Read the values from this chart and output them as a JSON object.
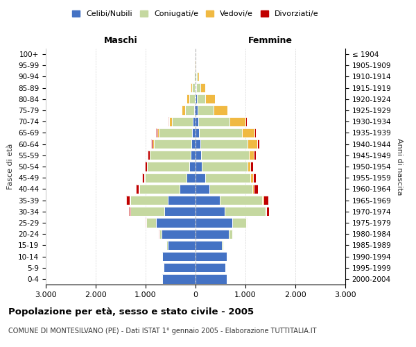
{
  "age_groups": [
    "0-4",
    "5-9",
    "10-14",
    "15-19",
    "20-24",
    "25-29",
    "30-34",
    "35-39",
    "40-44",
    "45-49",
    "50-54",
    "55-59",
    "60-64",
    "65-69",
    "70-74",
    "75-79",
    "80-84",
    "85-89",
    "90-94",
    "95-99",
    "100+"
  ],
  "birth_years": [
    "2000-2004",
    "1995-1999",
    "1990-1994",
    "1985-1989",
    "1980-1984",
    "1975-1979",
    "1970-1974",
    "1965-1969",
    "1960-1964",
    "1955-1959",
    "1950-1954",
    "1945-1949",
    "1940-1944",
    "1935-1939",
    "1930-1934",
    "1925-1929",
    "1920-1924",
    "1915-1919",
    "1910-1914",
    "1905-1909",
    "≤ 1904"
  ],
  "male": {
    "celibi": [
      660,
      640,
      660,
      560,
      680,
      790,
      620,
      550,
      320,
      180,
      120,
      100,
      80,
      70,
      50,
      25,
      20,
      10,
      5,
      2,
      0
    ],
    "coniugati": [
      1,
      2,
      5,
      18,
      48,
      195,
      680,
      760,
      810,
      840,
      850,
      810,
      760,
      660,
      420,
      180,
      110,
      55,
      18,
      3,
      0
    ],
    "vedovi": [
      0,
      0,
      0,
      0,
      0,
      1,
      2,
      3,
      3,
      4,
      5,
      9,
      18,
      38,
      55,
      75,
      55,
      28,
      10,
      2,
      0
    ],
    "divorziati": [
      0,
      0,
      0,
      2,
      5,
      9,
      28,
      76,
      56,
      46,
      38,
      38,
      28,
      18,
      10,
      4,
      2,
      0,
      0,
      0,
      0
    ]
  },
  "female": {
    "nubili": [
      620,
      600,
      630,
      530,
      660,
      730,
      580,
      480,
      280,
      190,
      125,
      110,
      95,
      75,
      55,
      38,
      28,
      18,
      10,
      5,
      0
    ],
    "coniugate": [
      2,
      3,
      10,
      28,
      76,
      290,
      820,
      860,
      860,
      910,
      910,
      960,
      950,
      860,
      620,
      330,
      170,
      76,
      28,
      5,
      0
    ],
    "vedove": [
      0,
      0,
      0,
      0,
      2,
      5,
      10,
      19,
      28,
      47,
      57,
      95,
      190,
      240,
      330,
      268,
      190,
      95,
      28,
      5,
      0
    ],
    "divorziate": [
      0,
      0,
      0,
      3,
      10,
      19,
      57,
      95,
      76,
      66,
      57,
      47,
      38,
      28,
      19,
      9,
      5,
      2,
      0,
      0,
      0
    ]
  },
  "color_celibi": "#4472c4",
  "color_coniugati": "#c5d8a0",
  "color_vedovi": "#f0b942",
  "color_divorziati": "#c00000",
  "title": "Popolazione per età, sesso e stato civile - 2005",
  "subtitle": "COMUNE DI MONTESILVANO (PE) - Dati ISTAT 1° gennaio 2005 - Elaborazione TUTTITALIA.IT",
  "xlabel_left": "Maschi",
  "xlabel_right": "Femmine",
  "ylabel_left": "Fasce di età",
  "ylabel_right": "Anni di nascita",
  "xlim": 3000,
  "xtick_labels": [
    "3.000",
    "2.000",
    "1.000",
    "0",
    "1.000",
    "2.000",
    "3.000"
  ],
  "background_color": "#ffffff",
  "grid_color": "#cccccc"
}
